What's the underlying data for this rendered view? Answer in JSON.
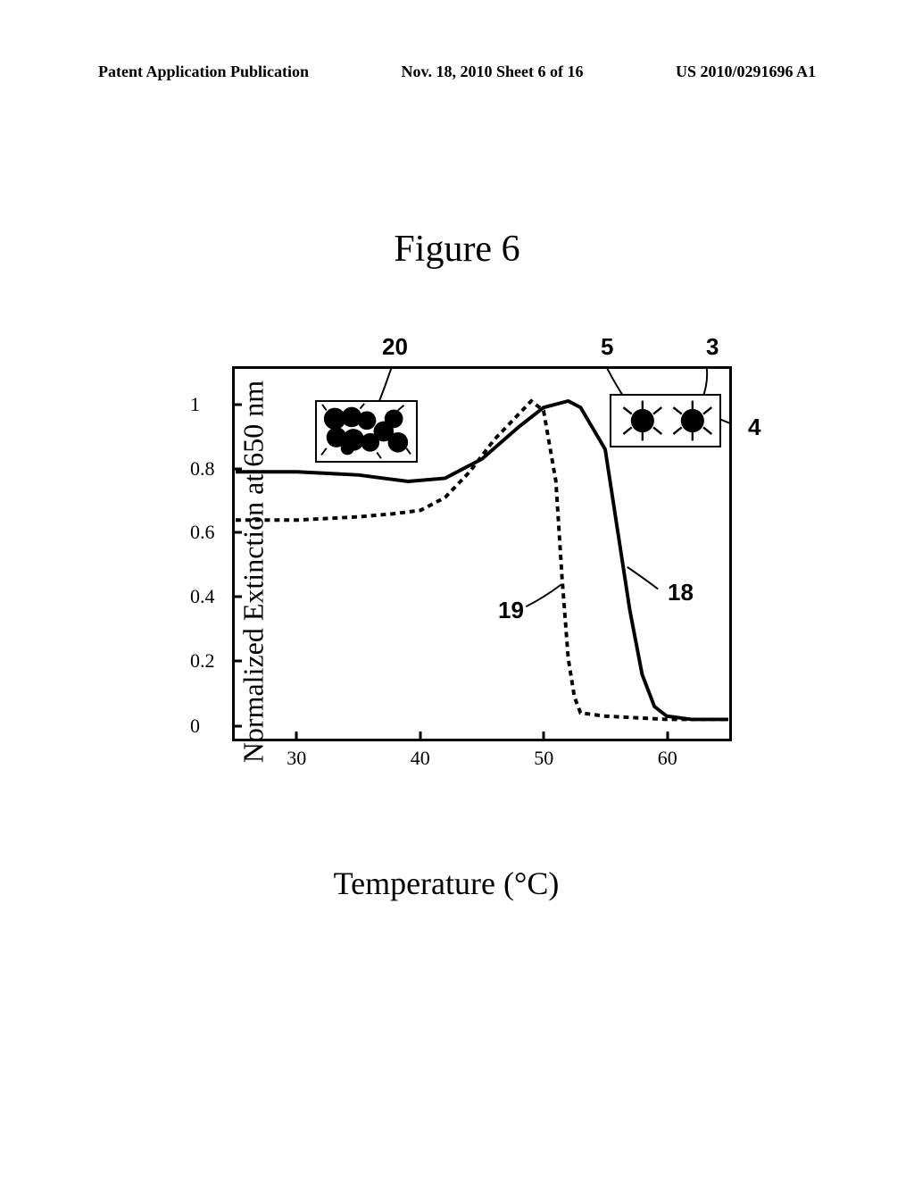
{
  "header": {
    "left": "Patent Application Publication",
    "center": "Nov. 18, 2010  Sheet 6 of 16",
    "right": "US 2010/0291696 A1"
  },
  "figure_title": "Figure 6",
  "chart": {
    "type": "line",
    "y_label": "Normalized Extinction at 650 nm",
    "x_label": "Temperature (°C)",
    "xlim": [
      25,
      65
    ],
    "ylim": [
      -0.05,
      1.1
    ],
    "x_ticks": [
      30,
      40,
      50,
      60
    ],
    "y_ticks": [
      0.0,
      0.2,
      0.4,
      0.6,
      0.8,
      1.0
    ],
    "background_color": "#ffffff",
    "border_color": "#000000",
    "line_width": 3,
    "curve_solid": {
      "label": "18",
      "dash": "none",
      "points": [
        [
          25,
          0.78
        ],
        [
          30,
          0.78
        ],
        [
          35,
          0.77
        ],
        [
          37,
          0.76
        ],
        [
          39,
          0.75
        ],
        [
          42,
          0.76
        ],
        [
          45,
          0.82
        ],
        [
          48,
          0.92
        ],
        [
          50,
          0.98
        ],
        [
          52,
          1.0
        ],
        [
          53,
          0.98
        ],
        [
          55,
          0.85
        ],
        [
          56,
          0.6
        ],
        [
          57,
          0.35
        ],
        [
          58,
          0.15
        ],
        [
          59,
          0.05
        ],
        [
          60,
          0.02
        ],
        [
          62,
          0.01
        ],
        [
          65,
          0.01
        ]
      ]
    },
    "curve_dashed": {
      "label": "19",
      "dash": "6,5",
      "points": [
        [
          25,
          0.63
        ],
        [
          30,
          0.63
        ],
        [
          35,
          0.64
        ],
        [
          38,
          0.65
        ],
        [
          40,
          0.66
        ],
        [
          42,
          0.7
        ],
        [
          44,
          0.78
        ],
        [
          46,
          0.88
        ],
        [
          48,
          0.96
        ],
        [
          49,
          1.0
        ],
        [
          50,
          0.97
        ],
        [
          51,
          0.75
        ],
        [
          51.5,
          0.45
        ],
        [
          52,
          0.2
        ],
        [
          52.5,
          0.08
        ],
        [
          53,
          0.03
        ],
        [
          55,
          0.02
        ],
        [
          60,
          0.01
        ],
        [
          65,
          0.01
        ]
      ]
    },
    "annotations": {
      "a20": "20",
      "a5": "5",
      "a3": "3",
      "a4": "4",
      "a19": "19",
      "a18": "18"
    },
    "annotation_fontsize": 26,
    "tick_fontsize": 22,
    "label_fontsize": 32
  }
}
